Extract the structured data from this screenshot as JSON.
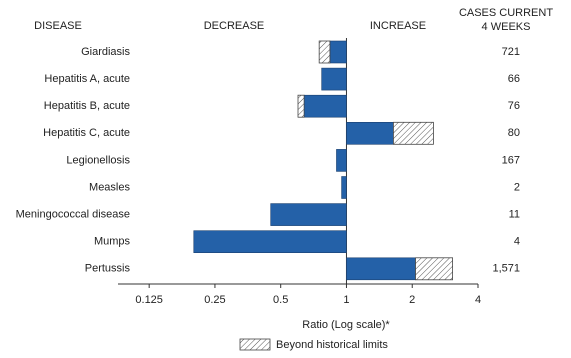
{
  "chart_data": {
    "type": "ratio-bar",
    "header_disease": "DISEASE",
    "header_decrease": "DECREASE",
    "header_increase": "INCREASE",
    "header_cases": [
      "CASES CURRENT",
      "4 WEEKS"
    ],
    "categories": [
      "Giardiasis",
      "Hepatitis A, acute",
      "Hepatitis B, acute",
      "Hepatitis C, acute",
      "Legionellosis",
      "Measles",
      "Meningococcal disease",
      "Mumps",
      "Pertussis"
    ],
    "values": [
      0.75,
      0.77,
      0.6,
      2.5,
      0.9,
      0.95,
      0.45,
      0.2,
      3.06
    ],
    "historical_limits": [
      0.84,
      null,
      0.64,
      1.64,
      null,
      null,
      null,
      null,
      2.07
    ],
    "cases": [
      "721",
      "66",
      "76",
      "80",
      "167",
      "2",
      "11",
      "4",
      "1,571"
    ],
    "color": "#2461a8",
    "xlabel": "Ratio (Log scale)*",
    "xscale": "log",
    "xlim": [
      0.09,
      4
    ],
    "xticks": [
      0.125,
      0.25,
      0.5,
      1,
      2,
      4
    ],
    "legend_label": "Beyond historical limits"
  }
}
